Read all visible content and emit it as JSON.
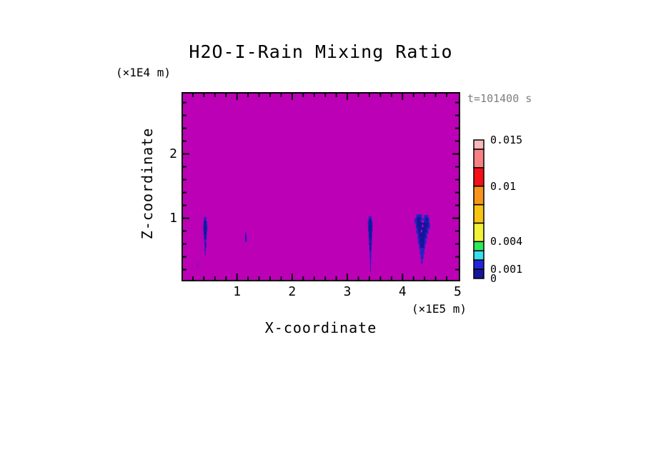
{
  "chart_data": {
    "type": "heatmap",
    "title": "H2O-I-Rain Mixing Ratio",
    "time": "t=101400 s",
    "xlabel": "X-coordinate",
    "x_unit": "(×1E5 m)",
    "ylabel": "Z-coordinate",
    "y_unit": "(×1E4 m)",
    "xlim": [
      0.02,
      5.02
    ],
    "ylim": [
      0.04,
      2.94
    ],
    "x_major_ticks": [
      1,
      2,
      3,
      4,
      5
    ],
    "y_major_ticks": [
      1,
      2
    ],
    "minor_tick_step": 0.2,
    "background_color": "#bb00b6",
    "frame_color": "#000000",
    "time_color": "#7e7e7e",
    "colorbar": {
      "levels": [
        0,
        0.001,
        0.002,
        0.003,
        0.004,
        0.006,
        0.008,
        0.01,
        0.012,
        0.014,
        0.015
      ],
      "colors": [
        "#16169b",
        "#2025e0",
        "#38dfee",
        "#2ee85e",
        "#f2f23a",
        "#f8c414",
        "#f8941c",
        "#f41016",
        "#f88084",
        "#f9b8ba"
      ],
      "labeled": [
        {
          "value": 0.015,
          "text": "0.015"
        },
        {
          "value": 0.01,
          "text": "0.01"
        },
        {
          "value": 0.004,
          "text": "0.004"
        },
        {
          "value": 0.001,
          "text": "0.001"
        },
        {
          "value": 0,
          "text": "0"
        }
      ]
    },
    "features": [
      {
        "name": "rain-cell-1",
        "color": "#2323c4",
        "spans": [
          [
            1.02,
            0.95,
            0.4,
            0.445
          ],
          [
            0.95,
            0.88,
            0.39,
            0.46
          ],
          [
            0.88,
            0.8,
            0.385,
            0.465
          ],
          [
            0.8,
            0.73,
            0.39,
            0.455
          ],
          [
            0.73,
            0.66,
            0.4,
            0.45
          ],
          [
            0.66,
            0.6,
            0.405,
            0.44
          ],
          [
            0.6,
            0.54,
            0.415,
            0.445
          ],
          [
            0.54,
            0.49,
            0.41,
            0.435
          ],
          [
            0.49,
            0.43,
            0.415,
            0.43
          ]
        ]
      },
      {
        "name": "rain-cell-1-core",
        "color": "#15159c",
        "spans": [
          [
            0.97,
            0.9,
            0.405,
            0.44
          ],
          [
            0.9,
            0.82,
            0.4,
            0.45
          ],
          [
            0.82,
            0.75,
            0.405,
            0.445
          ],
          [
            0.75,
            0.68,
            0.41,
            0.44
          ],
          [
            0.62,
            0.55,
            0.42,
            0.44
          ]
        ]
      },
      {
        "name": "rain-cell-2",
        "color": "#2323c4",
        "spans": [
          [
            0.78,
            0.71,
            1.15,
            1.17
          ],
          [
            0.71,
            0.63,
            1.145,
            1.175
          ]
        ]
      },
      {
        "name": "rain-cell-2-core",
        "color": "#15159c",
        "spans": [
          [
            0.74,
            0.67,
            1.15,
            1.165
          ]
        ]
      },
      {
        "name": "faint-cell",
        "color": "#8912a6",
        "spans": [
          [
            0.31,
            0.24,
            0.275,
            0.3
          ]
        ]
      },
      {
        "name": "rain-cell-3",
        "color": "#2323c4",
        "spans": [
          [
            1.03,
            0.96,
            3.385,
            3.44
          ],
          [
            0.96,
            0.88,
            3.37,
            3.46
          ],
          [
            0.88,
            0.78,
            3.375,
            3.455
          ],
          [
            0.78,
            0.68,
            3.385,
            3.45
          ],
          [
            0.68,
            0.58,
            3.39,
            3.445
          ],
          [
            0.58,
            0.48,
            3.4,
            3.44
          ],
          [
            0.48,
            0.38,
            3.405,
            3.435
          ],
          [
            0.38,
            0.28,
            3.41,
            3.43
          ],
          [
            0.28,
            0.17,
            3.413,
            3.425
          ]
        ]
      },
      {
        "name": "rain-cell-3-core",
        "color": "#15159c",
        "spans": [
          [
            0.99,
            0.9,
            3.39,
            3.44
          ],
          [
            0.9,
            0.8,
            3.385,
            3.45
          ],
          [
            0.8,
            0.7,
            3.395,
            3.44
          ],
          [
            0.7,
            0.6,
            3.4,
            3.435
          ],
          [
            0.6,
            0.5,
            3.405,
            3.43
          ]
        ]
      },
      {
        "name": "rain-cell-4",
        "color": "#2323c4",
        "spans": [
          [
            1.06,
            1.0,
            4.25,
            4.35
          ],
          [
            1.05,
            0.99,
            4.39,
            4.47
          ],
          [
            1.0,
            0.92,
            4.22,
            4.49
          ],
          [
            0.92,
            0.84,
            4.24,
            4.5
          ],
          [
            0.84,
            0.76,
            4.25,
            4.47
          ],
          [
            0.76,
            0.68,
            4.27,
            4.45
          ],
          [
            0.68,
            0.6,
            4.28,
            4.43
          ],
          [
            0.6,
            0.52,
            4.3,
            4.41
          ],
          [
            0.52,
            0.44,
            4.315,
            4.395
          ],
          [
            0.44,
            0.36,
            4.33,
            4.38
          ],
          [
            0.36,
            0.29,
            4.34,
            4.365
          ]
        ]
      },
      {
        "name": "rain-cell-4-core",
        "color": "#15159c",
        "spans": [
          [
            1.02,
            0.94,
            4.26,
            4.33
          ],
          [
            1.01,
            0.95,
            4.41,
            4.46
          ],
          [
            0.94,
            0.86,
            4.26,
            4.47
          ],
          [
            0.86,
            0.78,
            4.28,
            4.44
          ],
          [
            0.78,
            0.7,
            4.3,
            4.42
          ],
          [
            0.7,
            0.62,
            4.31,
            4.4
          ],
          [
            0.62,
            0.54,
            4.32,
            4.39
          ]
        ]
      },
      {
        "name": "rain-cell-4-holes",
        "color": "bg",
        "spans": [
          [
            0.97,
            0.93,
            4.345,
            4.385
          ],
          [
            0.9,
            0.86,
            4.35,
            4.38
          ],
          [
            0.82,
            0.78,
            4.33,
            4.36
          ],
          [
            0.64,
            0.62,
            3.41,
            3.42
          ]
        ]
      }
    ]
  }
}
